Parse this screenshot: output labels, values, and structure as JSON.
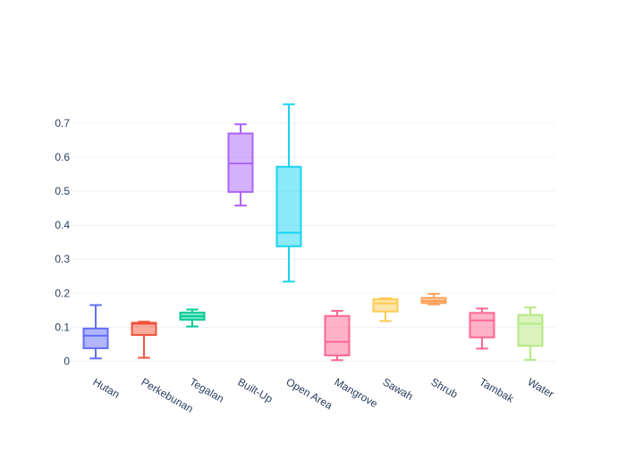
{
  "chart_data": {
    "type": "box",
    "title": "",
    "xlabel": "",
    "ylabel": "",
    "ylim": [
      -0.02,
      0.8
    ],
    "yticks": [
      0,
      0.1,
      0.2,
      0.3,
      0.4,
      0.5,
      0.6,
      0.7
    ],
    "ytick_labels": [
      "0",
      "0.1",
      "0.2",
      "0.3",
      "0.4",
      "0.5",
      "0.6",
      "0.7"
    ],
    "grid": true,
    "legend": "none",
    "categories": [
      "Hutan",
      "Perkebunan",
      "Tegalan",
      "Built-Up",
      "Open Area",
      "Mangrove",
      "Sawah",
      "Shrub",
      "Tambak",
      "Water"
    ],
    "series": [
      {
        "category": "Hutan",
        "min": 0.008,
        "q1": 0.038,
        "median": 0.075,
        "q3": 0.096,
        "max": 0.165,
        "color": "#636efa"
      },
      {
        "category": "Perkebunan",
        "min": 0.01,
        "q1": 0.077,
        "median": 0.11,
        "q3": 0.113,
        "max": 0.116,
        "color": "#ef553b"
      },
      {
        "category": "Tegalan",
        "min": 0.102,
        "q1": 0.122,
        "median": 0.132,
        "q3": 0.143,
        "max": 0.152,
        "color": "#00cc96"
      },
      {
        "category": "Built-Up",
        "min": 0.458,
        "q1": 0.498,
        "median": 0.582,
        "q3": 0.67,
        "max": 0.697,
        "color": "#ab63fa"
      },
      {
        "category": "Open Area",
        "min": 0.234,
        "q1": 0.338,
        "median": 0.378,
        "q3": 0.572,
        "max": 0.756,
        "color": "#19d3f3"
      },
      {
        "category": "Mangrove",
        "min": 0.003,
        "q1": 0.017,
        "median": 0.057,
        "q3": 0.133,
        "max": 0.148,
        "color": "#ff6692"
      },
      {
        "category": "Sawah",
        "min": 0.118,
        "q1": 0.146,
        "median": 0.17,
        "q3": 0.182,
        "max": 0.185,
        "color": "#fecb52"
      },
      {
        "category": "Shrub",
        "min": 0.167,
        "q1": 0.171,
        "median": 0.177,
        "q3": 0.186,
        "max": 0.198,
        "color": "#ffa15a"
      },
      {
        "category": "Tambak",
        "min": 0.037,
        "q1": 0.07,
        "median": 0.12,
        "q3": 0.142,
        "max": 0.155,
        "color": "#ff6692"
      },
      {
        "category": "Water",
        "min": 0.004,
        "q1": 0.045,
        "median": 0.11,
        "q3": 0.136,
        "max": 0.158,
        "color": "#b6e880"
      }
    ]
  },
  "colors": {
    "background": "#ffffff",
    "grid": "#ebf0f8",
    "axis_text": "#2a3f5f"
  }
}
